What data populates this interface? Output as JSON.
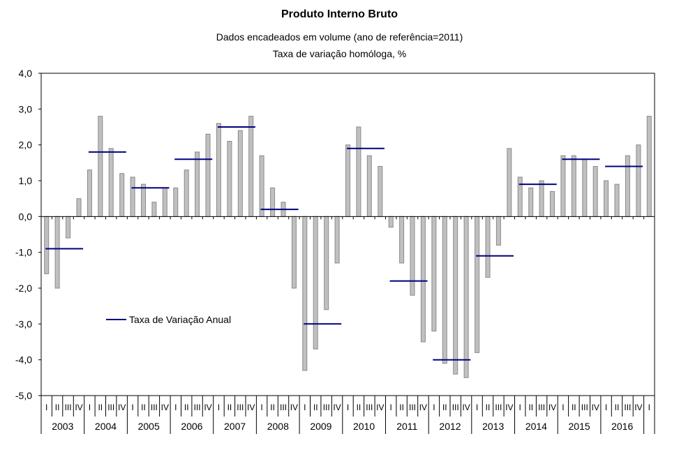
{
  "chart_data": {
    "type": "bar",
    "title": "Produto Interno Bruto",
    "subtitle": [
      "Dados encadeados em volume (ano de referência=2011)",
      "Taxa de variação homóloga, %"
    ],
    "xlabel": "",
    "ylabel": "",
    "ylim": [
      -5.0,
      4.0
    ],
    "yticks": [
      "4,0",
      "3,0",
      "2,0",
      "1,0",
      "0,0",
      "-1,0",
      "-2,0",
      "-3,0",
      "-4,0",
      "-5,0"
    ],
    "ytick_values": [
      4,
      3,
      2,
      1,
      0,
      -1,
      -2,
      -3,
      -4,
      -5
    ],
    "grid": false,
    "quarter_labels": [
      "I",
      "II",
      "III",
      "IV"
    ],
    "years": [
      "2003",
      "2004",
      "2005",
      "2006",
      "2007",
      "2008",
      "2009",
      "2010",
      "2011",
      "2012",
      "2013",
      "2014",
      "2015",
      "2016"
    ],
    "extra_quarter_label": "I",
    "series": [
      {
        "name": "Taxa de variação homóloga",
        "kind": "bar",
        "color": "#c0c0c0",
        "values": [
          -1.6,
          -2.0,
          -0.6,
          0.5,
          1.3,
          2.8,
          1.9,
          1.2,
          1.1,
          0.9,
          0.4,
          0.8,
          0.8,
          1.3,
          1.8,
          2.3,
          2.6,
          2.1,
          2.4,
          2.8,
          1.7,
          0.8,
          0.4,
          -2.0,
          -4.3,
          -3.7,
          -2.6,
          -1.3,
          2.0,
          2.5,
          1.7,
          1.4,
          -0.3,
          -1.3,
          -2.2,
          -3.5,
          -3.2,
          -4.1,
          -4.4,
          -4.5,
          -3.8,
          -1.7,
          -0.8,
          1.9,
          1.1,
          0.8,
          1.0,
          0.7,
          1.7,
          1.7,
          1.6,
          1.4,
          1.0,
          0.9,
          1.7,
          2.0,
          2.8
        ]
      },
      {
        "name": "Taxa de Variação Anual",
        "kind": "annual-segment",
        "color": "#000080",
        "values": [
          -0.9,
          1.8,
          0.8,
          1.6,
          2.5,
          0.2,
          -3.0,
          1.9,
          -1.8,
          -4.0,
          -1.1,
          0.9,
          1.6,
          1.4
        ]
      }
    ],
    "legend": {
      "label": "Taxa de Variação Anual",
      "placement": "lower-left-inside"
    }
  }
}
